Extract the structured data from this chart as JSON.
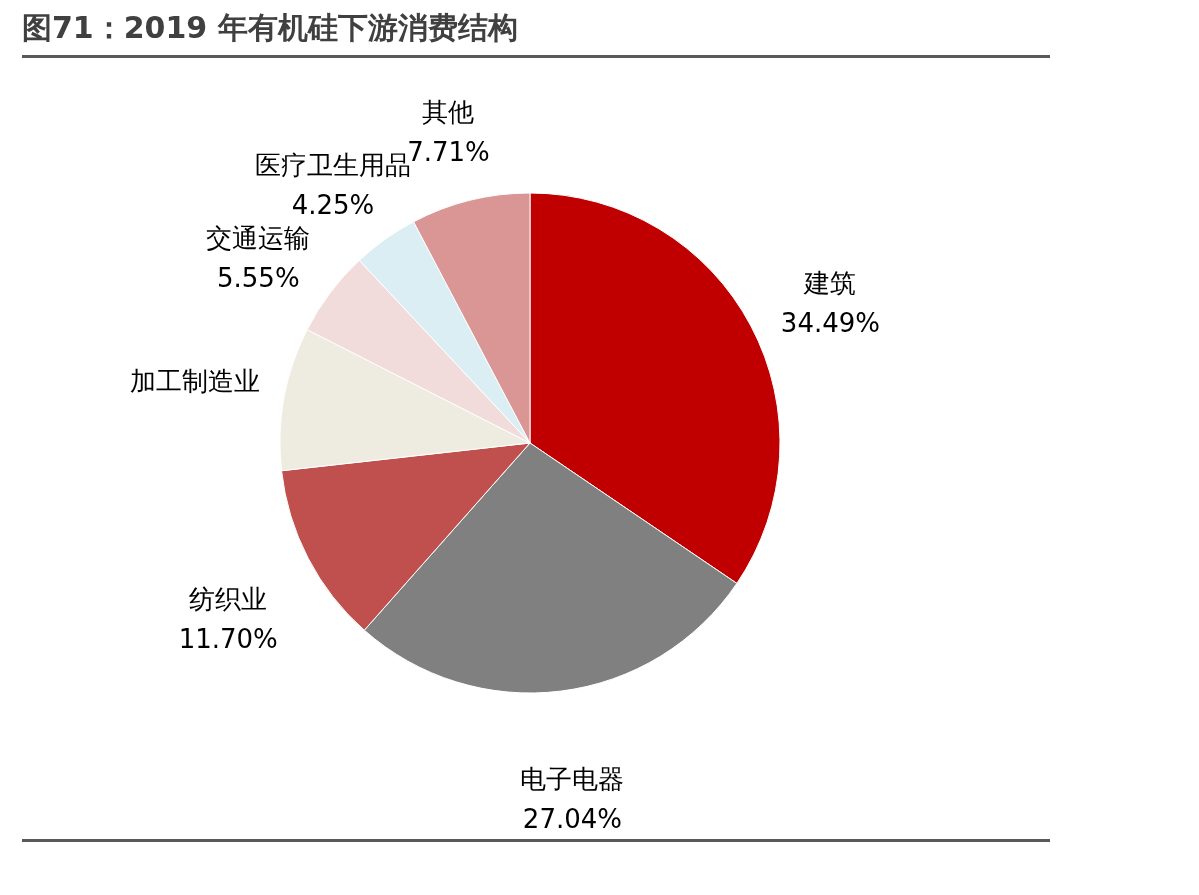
{
  "chart_data": {
    "type": "pie",
    "title": "图71：2019 年有机硅下游消费结构",
    "categories": [
      "建筑",
      "电子电器",
      "纺织业",
      "加工制造业",
      "交通运输",
      "医疗卫生用品",
      "其他"
    ],
    "values": [
      34.49,
      27.04,
      11.7,
      9.26,
      5.55,
      4.25,
      7.71
    ],
    "value_labels": [
      "34.49%",
      "27.04%",
      "11.70%",
      null,
      "5.55%",
      "4.25%",
      "7.71%"
    ],
    "colors": [
      "#c00000",
      "#808080",
      "#c0504d",
      "#eeebe1",
      "#f2dcdb",
      "#dbeef4",
      "#d99694"
    ],
    "legend": false
  }
}
